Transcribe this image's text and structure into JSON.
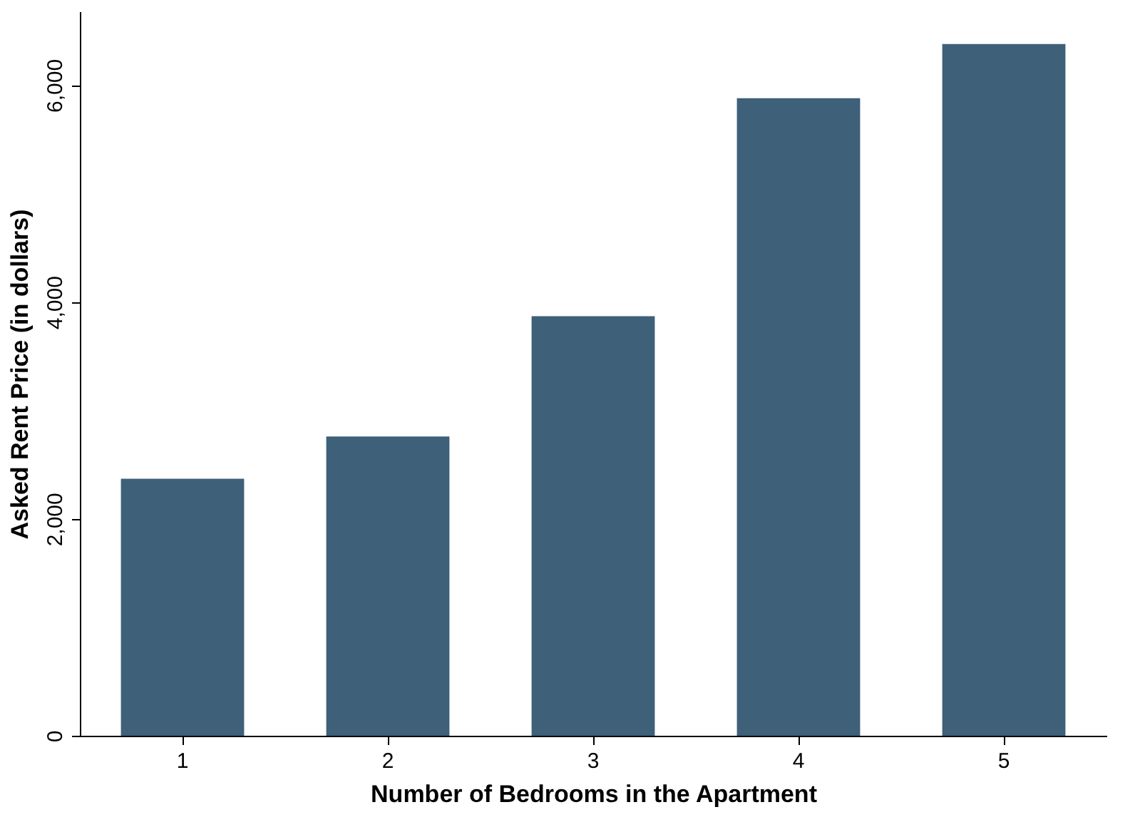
{
  "chart_data": {
    "type": "bar",
    "xlabel": "Number of Bedrooms in the Apartment",
    "ylabel": "Asked Rent Price (in dollars)",
    "categories": [
      "1",
      "2",
      "3",
      "4",
      "5"
    ],
    "values": [
      2370,
      2760,
      3870,
      5880,
      6380
    ],
    "color": "#3e6079",
    "ylim": [
      0,
      6680
    ],
    "yticks": [
      {
        "value": 0,
        "label": "0"
      },
      {
        "value": 2000,
        "label": "2,000"
      },
      {
        "value": 4000,
        "label": "4,000"
      },
      {
        "value": 6000,
        "label": "6,000"
      }
    ],
    "grid": false
  }
}
